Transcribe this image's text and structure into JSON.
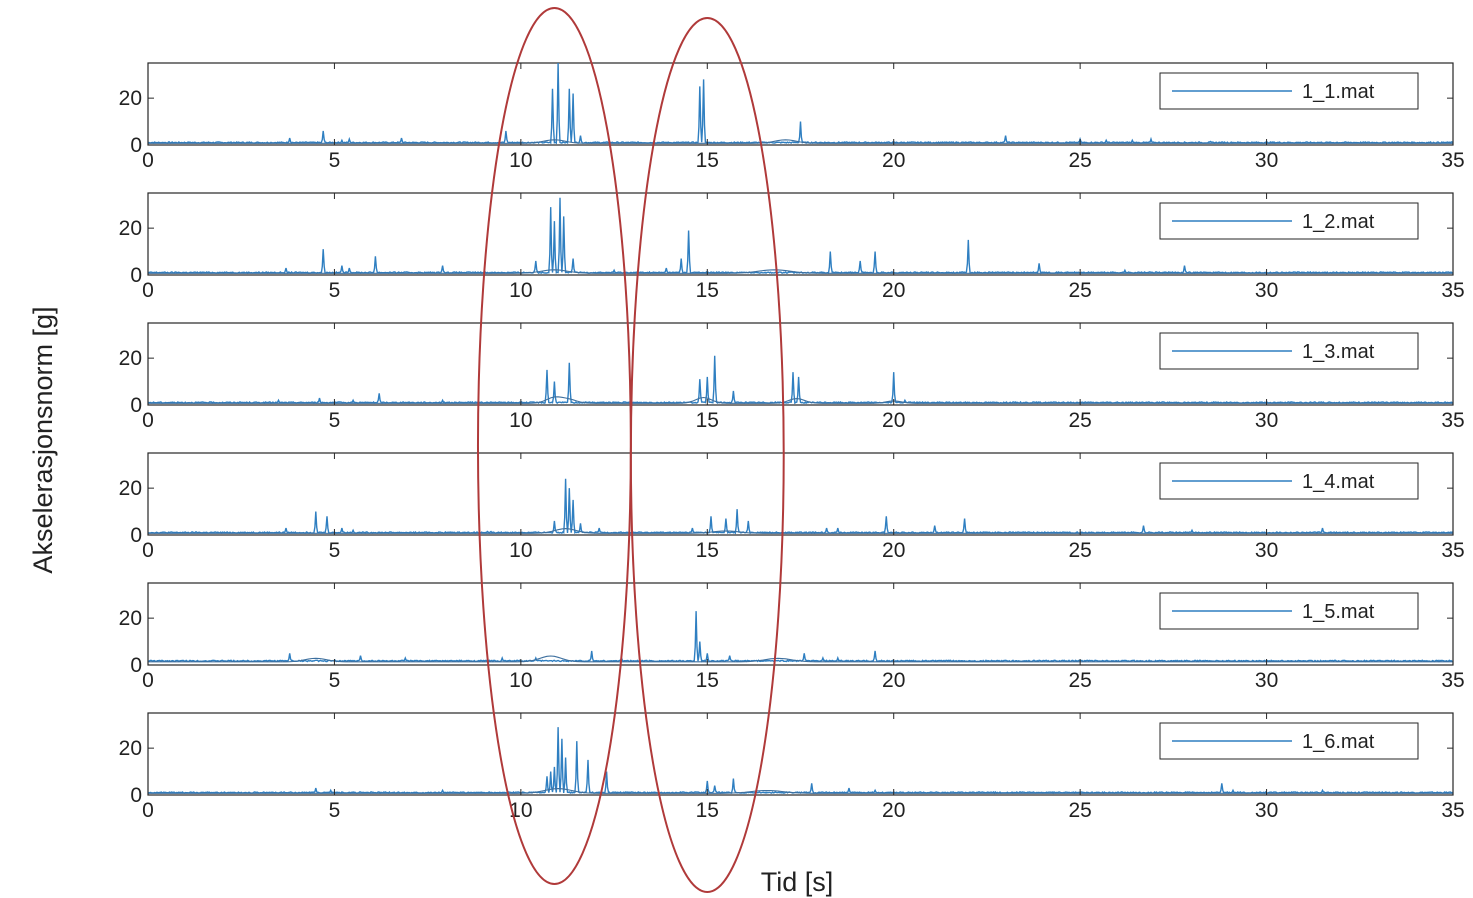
{
  "chart_data": {
    "type": "line",
    "xlabel": "Tid [s]",
    "ylabel": "Akselerasjonsnorm [g]",
    "xlim": [
      0,
      35
    ],
    "ylim": [
      0,
      35
    ],
    "xticks": [
      0,
      5,
      10,
      15,
      20,
      25,
      30,
      35
    ],
    "yticks": [
      0,
      20
    ],
    "grid": false,
    "legend_position": "top-right",
    "line_color": "#2f7fc1",
    "annotation_color": "#b03a3a",
    "annotations": [
      {
        "shape": "ellipse",
        "x_center": 10.9,
        "x_half_width": 2.05
      },
      {
        "shape": "ellipse",
        "x_center": 15.0,
        "x_half_width": 2.05
      }
    ],
    "subplots": [
      {
        "legend": "1_1.mat",
        "baseline": 0.8,
        "spikes": [
          [
            3.8,
            3
          ],
          [
            4.7,
            6
          ],
          [
            5.2,
            2
          ],
          [
            5.4,
            2.5
          ],
          [
            6.8,
            3
          ],
          [
            9.6,
            6
          ],
          [
            10.85,
            24
          ],
          [
            11.0,
            35
          ],
          [
            11.3,
            24
          ],
          [
            11.4,
            22
          ],
          [
            11.6,
            4
          ],
          [
            14.8,
            25
          ],
          [
            14.9,
            28
          ],
          [
            17.5,
            10
          ],
          [
            23.0,
            4
          ],
          [
            25.0,
            2.5
          ],
          [
            25.7,
            2
          ],
          [
            26.4,
            2
          ],
          [
            26.9,
            2.5
          ],
          [
            28.5,
            1.5
          ]
        ],
        "humps": [
          [
            10.9,
            1.5,
            0.4
          ],
          [
            17.1,
            1.5,
            0.4
          ]
        ]
      },
      {
        "legend": "1_2.mat",
        "baseline": 0.8,
        "spikes": [
          [
            3.7,
            3
          ],
          [
            4.7,
            11
          ],
          [
            5.2,
            4
          ],
          [
            5.4,
            3
          ],
          [
            6.1,
            8
          ],
          [
            7.9,
            4
          ],
          [
            10.4,
            6
          ],
          [
            10.8,
            29
          ],
          [
            10.9,
            23
          ],
          [
            11.05,
            33
          ],
          [
            11.15,
            25
          ],
          [
            11.4,
            7
          ],
          [
            12.5,
            2
          ],
          [
            13.9,
            3
          ],
          [
            14.3,
            7
          ],
          [
            14.5,
            19
          ],
          [
            18.3,
            10
          ],
          [
            19.1,
            6
          ],
          [
            19.5,
            10
          ],
          [
            22.0,
            15
          ],
          [
            23.9,
            5
          ],
          [
            26.2,
            2
          ],
          [
            27.8,
            4
          ]
        ],
        "humps": [
          [
            10.9,
            1.5,
            0.5
          ],
          [
            16.8,
            1.5,
            0.6
          ]
        ]
      },
      {
        "legend": "1_3.mat",
        "baseline": 0.8,
        "spikes": [
          [
            3.5,
            2
          ],
          [
            4.6,
            3
          ],
          [
            5.5,
            2
          ],
          [
            6.2,
            5
          ],
          [
            7.9,
            2
          ],
          [
            10.7,
            15
          ],
          [
            10.9,
            10
          ],
          [
            11.3,
            18
          ],
          [
            14.8,
            11
          ],
          [
            15.0,
            12
          ],
          [
            15.2,
            21
          ],
          [
            15.7,
            6
          ],
          [
            17.3,
            14
          ],
          [
            17.45,
            12
          ],
          [
            20.0,
            14
          ],
          [
            20.3,
            2
          ]
        ],
        "humps": [
          [
            10.9,
            2.5,
            0.3
          ],
          [
            11.3,
            1.5,
            0.3
          ],
          [
            14.9,
            2.5,
            0.3
          ],
          [
            17.4,
            2.0,
            0.3
          ],
          [
            20.0,
            1.0,
            0.3
          ]
        ]
      },
      {
        "legend": "1_4.mat",
        "baseline": 0.8,
        "spikes": [
          [
            3.7,
            3
          ],
          [
            4.5,
            10
          ],
          [
            4.8,
            8
          ],
          [
            5.2,
            3
          ],
          [
            5.5,
            2
          ],
          [
            9.1,
            1.5
          ],
          [
            9.2,
            1.5
          ],
          [
            10.9,
            6
          ],
          [
            11.2,
            24
          ],
          [
            11.3,
            20
          ],
          [
            11.4,
            15
          ],
          [
            11.6,
            5
          ],
          [
            12.1,
            3
          ],
          [
            14.6,
            3
          ],
          [
            15.1,
            8
          ],
          [
            15.5,
            7
          ],
          [
            15.8,
            11
          ],
          [
            16.1,
            6
          ],
          [
            18.2,
            3
          ],
          [
            18.5,
            3
          ],
          [
            19.8,
            8
          ],
          [
            21.1,
            4
          ],
          [
            21.9,
            7
          ],
          [
            26.7,
            4
          ],
          [
            28.0,
            2
          ],
          [
            31.5,
            3
          ]
        ],
        "humps": [
          [
            11.2,
            2.0,
            0.4
          ],
          [
            15.5,
            1.0,
            0.5
          ]
        ]
      },
      {
        "legend": "1_5.mat",
        "baseline": 1.5,
        "spikes": [
          [
            3.8,
            5
          ],
          [
            4.5,
            2
          ],
          [
            5.7,
            4
          ],
          [
            6.9,
            3
          ],
          [
            9.5,
            3
          ],
          [
            10.4,
            3
          ],
          [
            11.9,
            6
          ],
          [
            12.7,
            3
          ],
          [
            14.7,
            23
          ],
          [
            14.8,
            10
          ],
          [
            15.0,
            5
          ],
          [
            15.6,
            4
          ],
          [
            17.6,
            5
          ],
          [
            18.1,
            3
          ],
          [
            18.5,
            3
          ],
          [
            19.5,
            6
          ],
          [
            23.9,
            2
          ],
          [
            24.1,
            2
          ],
          [
            24.3,
            2
          ],
          [
            24.7,
            2
          ],
          [
            25.2,
            2
          ],
          [
            25.4,
            2
          ]
        ],
        "humps": [
          [
            4.5,
            1.5,
            0.4
          ],
          [
            10.8,
            2.5,
            0.4
          ],
          [
            16.9,
            1.5,
            0.5
          ]
        ]
      },
      {
        "legend": "1_6.mat",
        "baseline": 0.8,
        "spikes": [
          [
            4.5,
            3
          ],
          [
            4.9,
            2
          ],
          [
            7.9,
            2
          ],
          [
            10.7,
            8
          ],
          [
            10.8,
            10
          ],
          [
            10.9,
            12
          ],
          [
            11.0,
            29
          ],
          [
            11.1,
            24
          ],
          [
            11.2,
            16
          ],
          [
            11.5,
            23
          ],
          [
            11.8,
            15
          ],
          [
            12.3,
            10
          ],
          [
            15.0,
            6
          ],
          [
            15.2,
            4
          ],
          [
            15.7,
            7
          ],
          [
            17.8,
            5
          ],
          [
            18.8,
            3
          ],
          [
            19.5,
            2
          ],
          [
            28.8,
            5
          ],
          [
            29.1,
            2
          ],
          [
            31.5,
            2
          ]
        ],
        "humps": [
          [
            11.0,
            2.0,
            0.5
          ],
          [
            16.6,
            1.2,
            0.6
          ]
        ]
      }
    ]
  }
}
